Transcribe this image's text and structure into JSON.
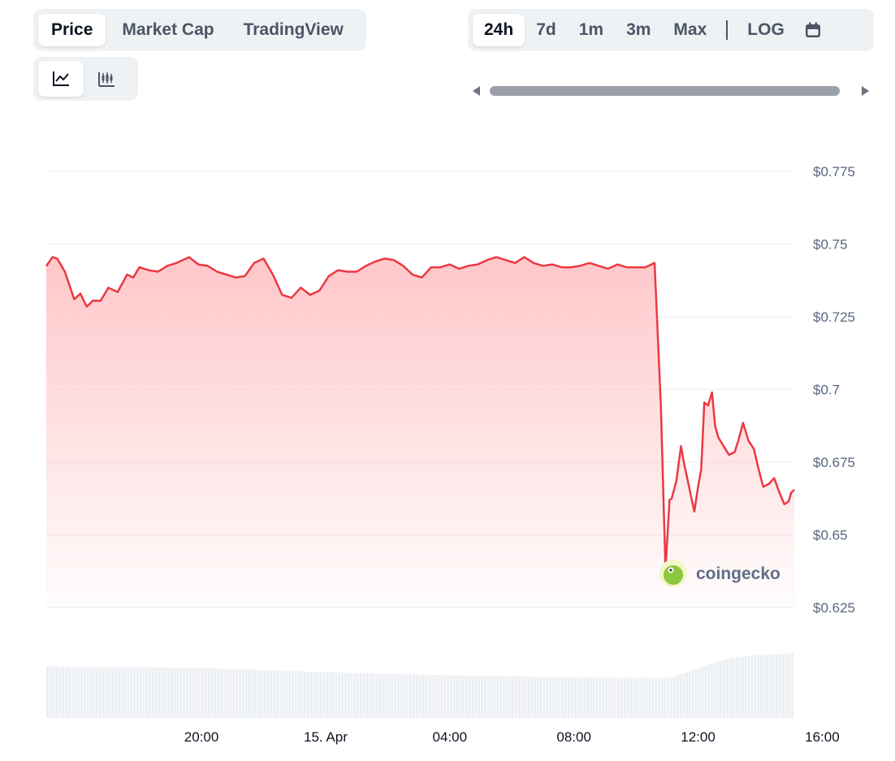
{
  "tabs": {
    "metric": [
      "Price",
      "Market Cap",
      "TradingView"
    ],
    "metric_active": "Price",
    "range": [
      "24h",
      "7d",
      "1m",
      "3m",
      "Max"
    ],
    "range_active": "24h",
    "log_label": "LOG"
  },
  "icons": {
    "line_chart": "line-chart-icon",
    "candlestick": "candlestick-icon",
    "calendar": "calendar-icon"
  },
  "watermark": "coingecko",
  "colors": {
    "line": "#ea3943",
    "area_top": "#ffc4c7",
    "volume": "#eceff3",
    "grid": "#eff2f5"
  },
  "chart_data": {
    "type": "area",
    "x_ticks": [
      "20:00",
      "15. Apr",
      "04:00",
      "08:00",
      "12:00",
      "16:00"
    ],
    "y_ticks": [
      "$0.775",
      "$0.75",
      "$0.725",
      "$0.7",
      "$0.675",
      "$0.65",
      "$0.625"
    ],
    "y_tick_values": [
      0.775,
      0.75,
      0.725,
      0.7,
      0.675,
      0.65,
      0.625
    ],
    "ylim": [
      0.625,
      0.775
    ],
    "xlim_hours": [
      15.0,
      39.1
    ],
    "x_tick_hours": [
      20,
      24,
      28,
      32,
      36,
      40
    ],
    "price_series": {
      "x_hours": [
        15.0,
        15.2,
        15.35,
        15.6,
        15.9,
        16.1,
        16.3,
        16.5,
        16.75,
        17.0,
        17.3,
        17.6,
        17.8,
        18.0,
        18.3,
        18.6,
        18.9,
        19.2,
        19.6,
        19.9,
        20.2,
        20.5,
        20.8,
        21.1,
        21.4,
        21.7,
        22.0,
        22.3,
        22.6,
        22.9,
        23.2,
        23.5,
        23.8,
        24.1,
        24.4,
        24.7,
        25.0,
        25.3,
        25.6,
        25.9,
        26.2,
        26.5,
        26.8,
        27.1,
        27.4,
        27.7,
        28.0,
        28.3,
        28.6,
        28.9,
        29.2,
        29.5,
        29.8,
        30.1,
        30.4,
        30.7,
        31.0,
        31.3,
        31.6,
        31.9,
        32.2,
        32.5,
        32.8,
        33.1,
        33.4,
        33.7,
        34.0,
        34.3,
        34.6,
        34.8,
        34.95,
        35.08,
        35.15,
        35.3,
        35.45,
        35.55,
        35.72,
        35.88,
        36.0,
        36.1,
        36.2,
        36.32,
        36.45,
        36.55,
        36.65,
        36.82,
        37.0,
        37.18,
        37.3,
        37.45,
        37.62,
        37.8,
        37.95,
        38.1,
        38.28,
        38.45,
        38.62,
        38.78,
        38.92,
        39.0,
        39.1
      ],
      "price_values": [
        0.7424,
        0.7455,
        0.745,
        0.7405,
        0.731,
        0.733,
        0.7285,
        0.7305,
        0.7305,
        0.735,
        0.7335,
        0.7395,
        0.7385,
        0.742,
        0.741,
        0.7405,
        0.7425,
        0.7435,
        0.7455,
        0.743,
        0.7425,
        0.7405,
        0.7395,
        0.7385,
        0.739,
        0.7435,
        0.745,
        0.7395,
        0.7325,
        0.7315,
        0.735,
        0.7325,
        0.734,
        0.739,
        0.741,
        0.7405,
        0.7405,
        0.7425,
        0.744,
        0.745,
        0.7445,
        0.7425,
        0.7395,
        0.7385,
        0.742,
        0.742,
        0.743,
        0.7415,
        0.7425,
        0.743,
        0.7445,
        0.7455,
        0.7445,
        0.7435,
        0.7455,
        0.7435,
        0.7425,
        0.743,
        0.742,
        0.742,
        0.7425,
        0.7435,
        0.7425,
        0.7415,
        0.743,
        0.742,
        0.742,
        0.742,
        0.7435,
        0.6945,
        0.638,
        0.662,
        0.6625,
        0.6685,
        0.6805,
        0.6745,
        0.666,
        0.658,
        0.6665,
        0.6725,
        0.6955,
        0.6945,
        0.699,
        0.6875,
        0.6835,
        0.6805,
        0.6775,
        0.6785,
        0.6825,
        0.6885,
        0.6825,
        0.6795,
        0.6725,
        0.6665,
        0.6675,
        0.6695,
        0.6645,
        0.6605,
        0.6615,
        0.6645,
        0.6655
      ]
    },
    "volume_series": {
      "x_hours": [
        15.0,
        16.0,
        18.0,
        20.0,
        22.0,
        24.0,
        26.0,
        28.0,
        30.0,
        32.0,
        34.0,
        35.0,
        35.2,
        35.6,
        36.0,
        36.4,
        36.8,
        37.2,
        37.6,
        38.0,
        38.5,
        39.1
      ],
      "values": [
        1.0,
        0.98,
        0.98,
        0.96,
        0.92,
        0.88,
        0.85,
        0.82,
        0.8,
        0.78,
        0.77,
        0.77,
        0.8,
        0.88,
        0.96,
        1.05,
        1.12,
        1.16,
        1.2,
        1.21,
        1.23,
        1.24
      ]
    },
    "grid": true,
    "legend": false
  }
}
